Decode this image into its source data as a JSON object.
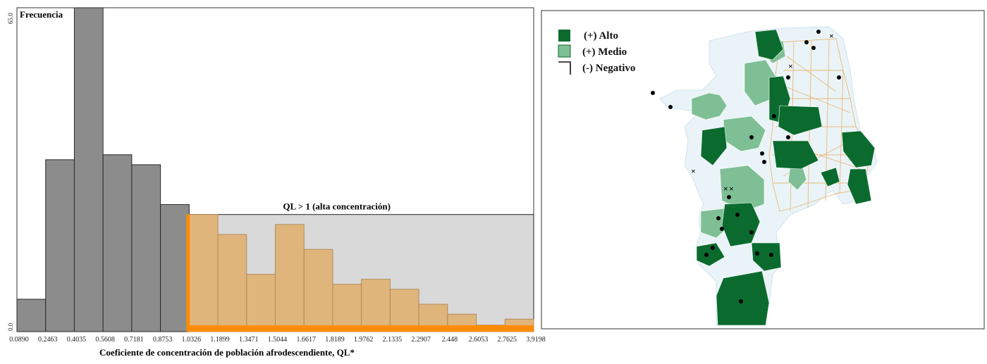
{
  "chart_data": [
    {
      "type": "bar",
      "title": "",
      "ylabel": "Frecuencia",
      "xlabel": "Coeficiente de concentración de población afrodescendiente, QL*",
      "ylim": [
        0,
        65
      ],
      "y_tick_labels": [
        "0.0",
        "65.0"
      ],
      "x_tick_labels": [
        "0.0890",
        "0.2463",
        "0.4035",
        "0.5608",
        "0.7181",
        "0.8753",
        "1.0326",
        "1.1899",
        "1.3471",
        "1.5044",
        "1.6617",
        "1.8189",
        "1.9762",
        "2.1335",
        "2.2907",
        "2.448",
        "2.6053",
        "2.7625",
        "3.9198"
      ],
      "series": [
        {
          "values": [
            6.5,
            34.5,
            65,
            35.5,
            33.5,
            25.5,
            23.5,
            19.5,
            11.5,
            21.5,
            16.5,
            9.5,
            10.5,
            8.5,
            5.5,
            3.5,
            1.3,
            2.5
          ]
        }
      ],
      "highlight": {
        "label": "QL > 1 (alta concentración)",
        "from_index": 6,
        "color": "#ff8c00",
        "fill": "#e0b57c",
        "region_fill": "#d9d9d9"
      },
      "base_color": "#8c8c8c",
      "grid": false
    }
  ],
  "map": {
    "legend": [
      {
        "label": "(+) Alto",
        "color": "#0b6b2e"
      },
      {
        "label": "(+) Medio",
        "color": "#7fbf95"
      },
      {
        "label": "(-) Negativo",
        "color": "#ffffff"
      }
    ],
    "colors": {
      "alto": "#0b6b2e",
      "medio": "#7fbf95",
      "negativo": "#eaf4f8",
      "boundary": "#e8b87a"
    }
  }
}
